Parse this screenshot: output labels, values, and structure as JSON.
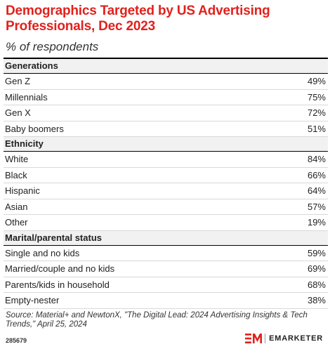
{
  "header": {
    "title": "Demographics Targeted by US Advertising Professionals, Dec 2023",
    "subtitle": "% of respondents"
  },
  "chart_data": {
    "type": "table",
    "title": "Demographics Targeted by US Advertising Professionals, Dec 2023",
    "subtitle": "% of respondents",
    "sections": [
      {
        "name": "Generations",
        "rows": [
          {
            "label": "Gen Z",
            "value": "49%"
          },
          {
            "label": "Millennials",
            "value": "75%"
          },
          {
            "label": "Gen X",
            "value": "72%"
          },
          {
            "label": "Baby boomers",
            "value": "51%"
          }
        ]
      },
      {
        "name": "Ethnicity",
        "rows": [
          {
            "label": "White",
            "value": "84%"
          },
          {
            "label": "Black",
            "value": "66%"
          },
          {
            "label": "Hispanic",
            "value": "64%"
          },
          {
            "label": "Asian",
            "value": "57%"
          },
          {
            "label": "Other",
            "value": "19%"
          }
        ]
      },
      {
        "name": "Marital/parental status",
        "rows": [
          {
            "label": "Single and no kids",
            "value": "59%"
          },
          {
            "label": "Married/couple and no kids",
            "value": "69%"
          },
          {
            "label": "Parents/kids in household",
            "value": "68%"
          },
          {
            "label": "Empty-nester",
            "value": "38%"
          }
        ]
      }
    ]
  },
  "footer": {
    "source": "Source: Material+ and NewtonX, \"The Digital Lead: 2024 Advertising Insights & Tech Trends,\" April 25, 2024",
    "chart_id": "285679",
    "brand": "EMARKETER",
    "brand_mark": "EM"
  },
  "colors": {
    "title": "#e1211d",
    "logo": "#e1211d"
  }
}
